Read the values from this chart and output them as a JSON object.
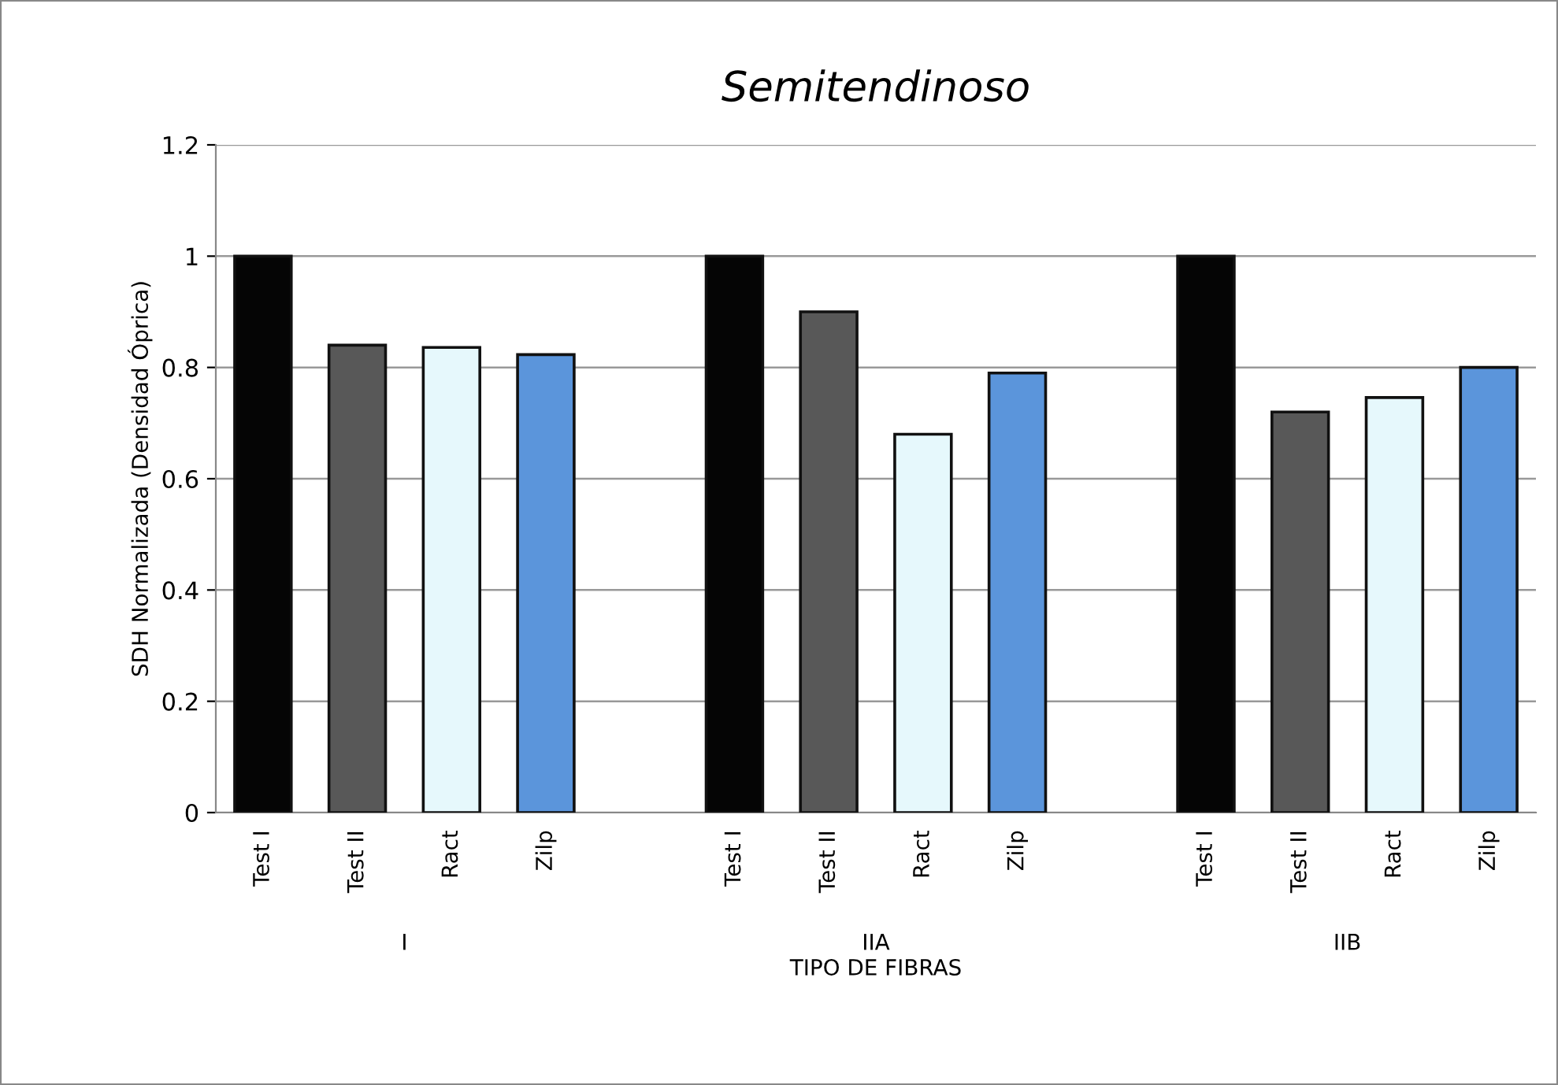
{
  "chart_data": {
    "type": "bar",
    "title": "Semitendinoso",
    "xlabel": "TIPO DE FIBRAS",
    "ylabel": "SDH Normalizada (Densidad Óprica)",
    "categories": [
      "Test I",
      "Test II",
      "Ract",
      "Zilp",
      null,
      "Test I",
      "Test II",
      "Ract",
      "Zilp",
      null,
      "Test I",
      "Test II",
      "Ract",
      "Zilp"
    ],
    "values": [
      1,
      0.84,
      0.836,
      0.823,
      null,
      1,
      0.9,
      0.68,
      0.79,
      null,
      1,
      0.72,
      0.746,
      0.8
    ],
    "colors": [
      "#050505",
      "#585858",
      "#e6f8fc",
      "#5b95db",
      null,
      "#050505",
      "#585858",
      "#e6f8fc",
      "#5b95db",
      null,
      "#050505",
      "#585858",
      "#e6f8fc",
      "#5b95db"
    ],
    "annotations": [
      "I",
      "IIA",
      "IIB"
    ],
    "ylim": [
      0,
      1.2
    ],
    "yticks": [
      0,
      0.2,
      0.4,
      0.6,
      0.8,
      1,
      1.2
    ],
    "grid": "y"
  }
}
